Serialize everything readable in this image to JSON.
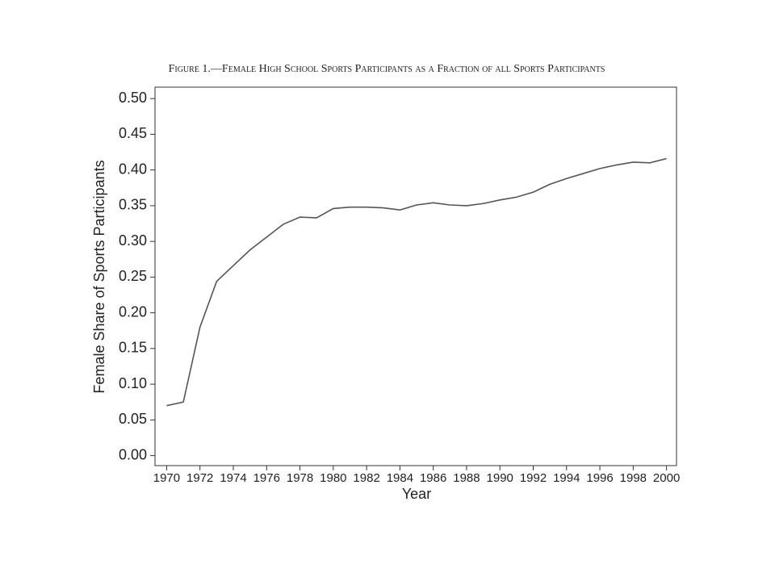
{
  "chart_data": {
    "type": "line",
    "title": "Figure 1.—Female High School Sports Participants as a Fraction of all Sports Participants",
    "x_label": "Year",
    "y_label": "Female Share of Sports Participants",
    "x": [
      1970,
      1971,
      1972,
      1973,
      1974,
      1975,
      1976,
      1977,
      1978,
      1979,
      1980,
      1981,
      1982,
      1983,
      1984,
      1985,
      1986,
      1987,
      1988,
      1989,
      1990,
      1991,
      1992,
      1993,
      1994,
      1995,
      1996,
      1997,
      1998,
      1999,
      2000
    ],
    "series": [
      {
        "color": "#555555",
        "values": [
          0.07,
          0.075,
          0.18,
          0.244,
          0.266,
          0.288,
          0.306,
          0.324,
          0.334,
          0.333,
          0.346,
          0.348,
          0.348,
          0.347,
          0.344,
          0.351,
          0.354,
          0.351,
          0.35,
          0.353,
          0.358,
          0.362,
          0.369,
          0.38,
          0.388,
          0.395,
          0.402,
          0.407,
          0.411,
          0.41,
          0.416
        ]
      }
    ],
    "xlim": [
      1969.3,
      2000.6
    ],
    "ylim": [
      -0.014,
      0.516
    ],
    "xticks": [
      1970,
      1972,
      1974,
      1976,
      1978,
      1980,
      1982,
      1984,
      1986,
      1988,
      1990,
      1992,
      1994,
      1996,
      1998,
      2000
    ],
    "yticks": [
      {
        "value": 0,
        "label": "0.00"
      },
      {
        "value": 0.05,
        "label": "0.05"
      },
      {
        "value": 0.1,
        "label": "0.10"
      },
      {
        "value": 0.15,
        "label": "0.15"
      },
      {
        "value": 0.2,
        "label": "0.20"
      },
      {
        "value": 0.25,
        "label": "0.25"
      },
      {
        "value": 0.3,
        "label": "0.30"
      },
      {
        "value": 0.35,
        "label": "0.35"
      },
      {
        "value": 0.4,
        "label": "0.40"
      },
      {
        "value": 0.45,
        "label": "0.45"
      },
      {
        "value": 0.5,
        "label": "0.50"
      }
    ],
    "grid": false
  }
}
